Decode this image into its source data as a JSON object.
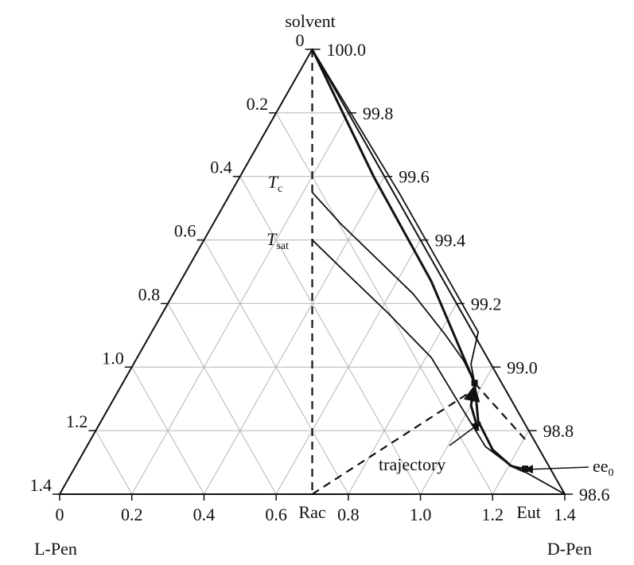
{
  "chart_data": {
    "type": "ternary",
    "top_label": "solvent",
    "left_label": "L-Pen",
    "right_label": "D-Pen",
    "xlim": [
      0,
      1.4
    ],
    "xticks": [
      0,
      0.2,
      0.4,
      0.6,
      0.8,
      {
        "value": 1,
        "label": "1.0"
      },
      1.2,
      1.4
    ],
    "x_markers": [
      {
        "value": 0.7,
        "label": "Rac"
      },
      {
        "value": 1.3,
        "label": "Eut"
      }
    ],
    "ylim": [
      0,
      1.4
    ],
    "yticks": [
      0,
      0.2,
      0.4,
      0.6,
      0.8,
      {
        "value": 1,
        "label": "1.0"
      },
      1.2,
      1.4
    ],
    "y2lim": [
      100,
      98.6
    ],
    "y2ticks": [
      {
        "value": 100,
        "label": "100.0"
      },
      99.8,
      99.6,
      99.4,
      99.2,
      {
        "value": 99,
        "label": "99.0"
      },
      98.8,
      98.6
    ],
    "grid": true,
    "grid_color": "#b4b4b4",
    "line_color": "#111111",
    "annotations": [
      {
        "text": "T",
        "subscript": "c"
      },
      {
        "text": "T",
        "subscript": "sat"
      },
      {
        "text": "trajectory"
      },
      {
        "text": "ee",
        "subscript": "0"
      }
    ],
    "series": [
      {
        "style": "dashed",
        "x": [
          0.7,
          0.7
        ],
        "y": [
          0,
          1.4
        ]
      },
      {
        "style": "thin",
        "x": [
          0.7,
          0.78,
          0.88,
          0.98,
          1.07,
          1.12,
          1.15
        ],
        "y": [
          0.45,
          0.55,
          0.66,
          0.77,
          0.9,
          0.98,
          1.05
        ]
      },
      {
        "style": "thin",
        "x": [
          0.7,
          0.8,
          0.91,
          1.03,
          1.11,
          1.18,
          1.25,
          1.29
        ],
        "y": [
          0.6,
          0.71,
          0.83,
          0.97,
          1.12,
          1.25,
          1.31,
          1.32
        ]
      },
      {
        "style": "bold",
        "x": [
          0.7,
          0.87,
          1.03,
          1.15,
          1.16,
          1.2,
          1.25,
          1.29
        ],
        "y": [
          0,
          0.4,
          0.73,
          1.05,
          1.17,
          1.26,
          1.31,
          1.33
        ]
      },
      {
        "style": "thin",
        "x": [
          0.7,
          0.94,
          1.16,
          1.14,
          1.15
        ],
        "y": [
          0,
          0.45,
          0.89,
          0.99,
          1.05
        ]
      },
      {
        "style": "thin",
        "x": [
          1.29,
          1.4
        ],
        "y": [
          1.33,
          1.4
        ]
      },
      {
        "style": "dashed",
        "x": [
          0.7,
          1.15
        ],
        "y": [
          1.4,
          1.07
        ]
      },
      {
        "style": "dashed",
        "x": [
          1.15,
          1.3
        ],
        "y": [
          1.05,
          1.24
        ]
      },
      {
        "style": "bold",
        "x": [
          1.16,
          1.14,
          1.15
        ],
        "y": [
          1.2,
          1.12,
          1.06
        ]
      }
    ],
    "points": {
      "x": [
        1.15,
        1.29
      ],
      "y": [
        1.05,
        1.32
      ]
    }
  }
}
